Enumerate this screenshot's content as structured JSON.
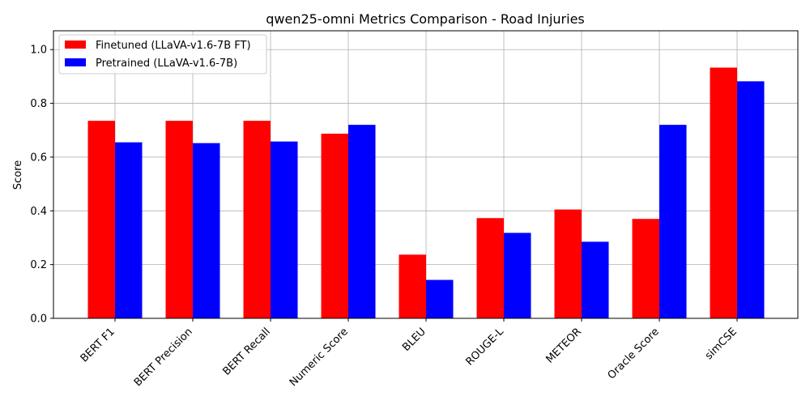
{
  "chart_data": {
    "type": "bar",
    "title": "qwen25-omni Metrics Comparison - Road Injuries",
    "xlabel": "",
    "ylabel": "Score",
    "ylim": [
      0,
      1.07
    ],
    "yticks": [
      "0.0",
      "0.2",
      "0.4",
      "0.6",
      "0.8",
      "1.0"
    ],
    "grid": true,
    "legend_position": "top-left",
    "categories": [
      "BERT F1",
      "BERT Precision",
      "BERT Recall",
      "Numeric Score",
      "BLEU",
      "ROUGE-L",
      "METEOR",
      "Oracle Score",
      "simCSE"
    ],
    "series": [
      {
        "name": "Finetuned (LLaVA-v1.6-7B FT)",
        "color": "#ff0000",
        "values": [
          0.735,
          0.735,
          0.735,
          0.687,
          0.237,
          0.373,
          0.405,
          0.37,
          0.933
        ]
      },
      {
        "name": "Pretrained (LLaVA-v1.6-7B)",
        "color": "#0000ff",
        "values": [
          0.655,
          0.652,
          0.658,
          0.72,
          0.143,
          0.318,
          0.285,
          0.72,
          0.882
        ]
      }
    ]
  }
}
